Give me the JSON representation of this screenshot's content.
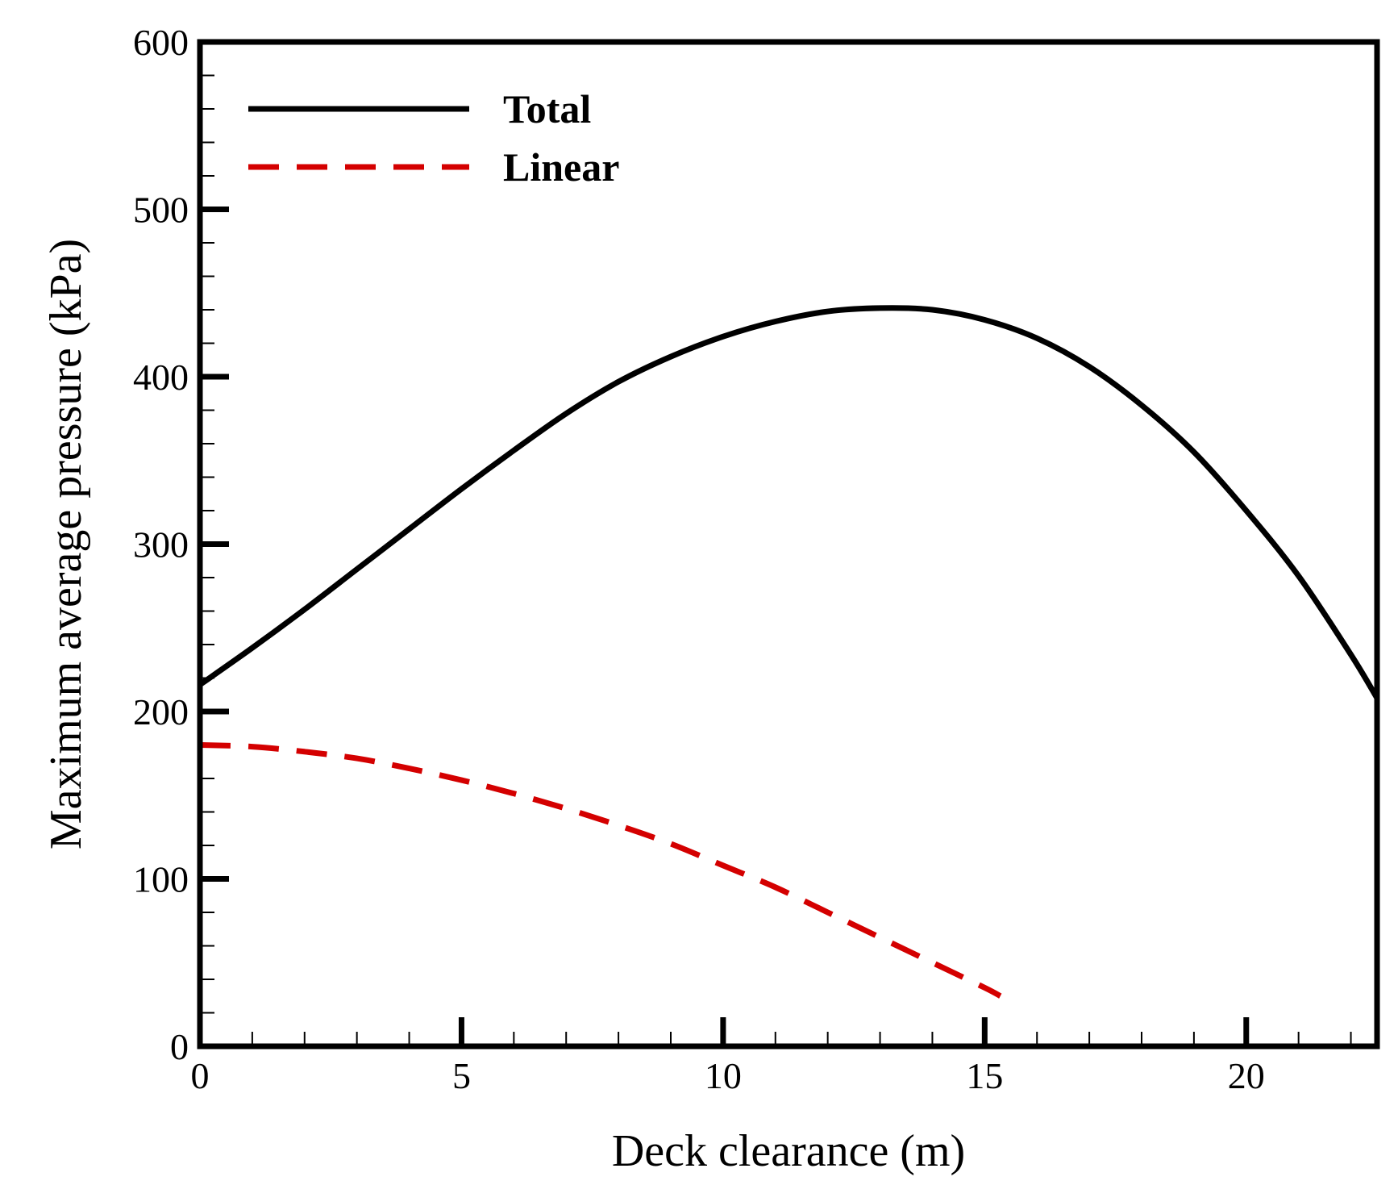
{
  "chart_data": {
    "type": "line",
    "xlabel": "Deck clearance (m)",
    "ylabel": "Maximum average pressure (kPa)",
    "xlim": [
      0,
      22.5
    ],
    "ylim": [
      0,
      600
    ],
    "x_major_ticks": [
      0,
      5,
      10,
      15,
      20
    ],
    "x_minor_step": 1,
    "y_major_ticks": [
      0,
      100,
      200,
      300,
      400,
      500,
      600
    ],
    "y_minor_step": 20,
    "x_tick_labels": [
      "0",
      "5",
      "10",
      "15",
      "20"
    ],
    "y_tick_labels": [
      "0",
      "100",
      "200",
      "300",
      "400",
      "500",
      "600"
    ],
    "grid": false,
    "legend_position": "top-left",
    "series": [
      {
        "name": "Total",
        "color": "#000000",
        "style": "solid",
        "x": [
          0,
          1,
          2,
          3,
          4,
          5,
          6,
          7,
          8,
          9,
          10,
          11,
          12,
          13,
          14,
          15,
          16,
          17,
          18,
          19,
          20,
          21,
          22,
          22.5
        ],
        "y": [
          216,
          238,
          261,
          285,
          309,
          333,
          356,
          378,
          397,
          412,
          424,
          433,
          439,
          441,
          440,
          434,
          423,
          406,
          383,
          355,
          320,
          281,
          234,
          208
        ]
      },
      {
        "name": "Linear",
        "color": "#d40000",
        "style": "dashed",
        "x": [
          0,
          1,
          2,
          3,
          4,
          5,
          6,
          7,
          8,
          9,
          10,
          11,
          12,
          13,
          14,
          15,
          15.3
        ],
        "y": [
          180,
          179,
          176,
          172,
          166,
          159,
          151,
          142,
          132,
          121,
          108,
          95,
          80,
          65,
          50,
          35,
          30
        ]
      }
    ]
  }
}
